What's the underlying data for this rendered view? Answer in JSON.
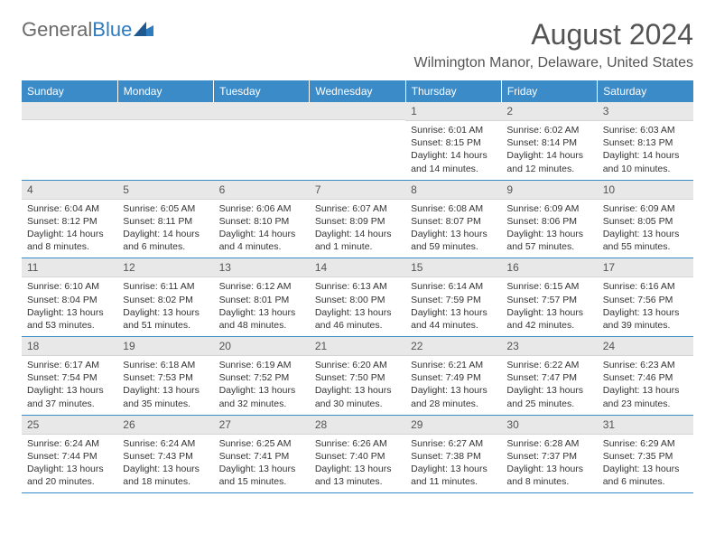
{
  "logo": {
    "general": "General",
    "blue": "Blue"
  },
  "title": "August 2024",
  "location": "Wilmington Manor, Delaware, United States",
  "colors": {
    "header_bg": "#3b8bc9",
    "header_text": "#ffffff",
    "daynum_bg": "#e8e8e8",
    "text": "#333333",
    "logo_blue": "#2f7bbf",
    "logo_gray": "#6b6b6b"
  },
  "dayNames": [
    "Sunday",
    "Monday",
    "Tuesday",
    "Wednesday",
    "Thursday",
    "Friday",
    "Saturday"
  ],
  "weeks": [
    [
      {
        "num": "",
        "sunrise": "",
        "sunset": "",
        "daylight": ""
      },
      {
        "num": "",
        "sunrise": "",
        "sunset": "",
        "daylight": ""
      },
      {
        "num": "",
        "sunrise": "",
        "sunset": "",
        "daylight": ""
      },
      {
        "num": "",
        "sunrise": "",
        "sunset": "",
        "daylight": ""
      },
      {
        "num": "1",
        "sunrise": "Sunrise: 6:01 AM",
        "sunset": "Sunset: 8:15 PM",
        "daylight": "Daylight: 14 hours and 14 minutes."
      },
      {
        "num": "2",
        "sunrise": "Sunrise: 6:02 AM",
        "sunset": "Sunset: 8:14 PM",
        "daylight": "Daylight: 14 hours and 12 minutes."
      },
      {
        "num": "3",
        "sunrise": "Sunrise: 6:03 AM",
        "sunset": "Sunset: 8:13 PM",
        "daylight": "Daylight: 14 hours and 10 minutes."
      }
    ],
    [
      {
        "num": "4",
        "sunrise": "Sunrise: 6:04 AM",
        "sunset": "Sunset: 8:12 PM",
        "daylight": "Daylight: 14 hours and 8 minutes."
      },
      {
        "num": "5",
        "sunrise": "Sunrise: 6:05 AM",
        "sunset": "Sunset: 8:11 PM",
        "daylight": "Daylight: 14 hours and 6 minutes."
      },
      {
        "num": "6",
        "sunrise": "Sunrise: 6:06 AM",
        "sunset": "Sunset: 8:10 PM",
        "daylight": "Daylight: 14 hours and 4 minutes."
      },
      {
        "num": "7",
        "sunrise": "Sunrise: 6:07 AM",
        "sunset": "Sunset: 8:09 PM",
        "daylight": "Daylight: 14 hours and 1 minute."
      },
      {
        "num": "8",
        "sunrise": "Sunrise: 6:08 AM",
        "sunset": "Sunset: 8:07 PM",
        "daylight": "Daylight: 13 hours and 59 minutes."
      },
      {
        "num": "9",
        "sunrise": "Sunrise: 6:09 AM",
        "sunset": "Sunset: 8:06 PM",
        "daylight": "Daylight: 13 hours and 57 minutes."
      },
      {
        "num": "10",
        "sunrise": "Sunrise: 6:09 AM",
        "sunset": "Sunset: 8:05 PM",
        "daylight": "Daylight: 13 hours and 55 minutes."
      }
    ],
    [
      {
        "num": "11",
        "sunrise": "Sunrise: 6:10 AM",
        "sunset": "Sunset: 8:04 PM",
        "daylight": "Daylight: 13 hours and 53 minutes."
      },
      {
        "num": "12",
        "sunrise": "Sunrise: 6:11 AM",
        "sunset": "Sunset: 8:02 PM",
        "daylight": "Daylight: 13 hours and 51 minutes."
      },
      {
        "num": "13",
        "sunrise": "Sunrise: 6:12 AM",
        "sunset": "Sunset: 8:01 PM",
        "daylight": "Daylight: 13 hours and 48 minutes."
      },
      {
        "num": "14",
        "sunrise": "Sunrise: 6:13 AM",
        "sunset": "Sunset: 8:00 PM",
        "daylight": "Daylight: 13 hours and 46 minutes."
      },
      {
        "num": "15",
        "sunrise": "Sunrise: 6:14 AM",
        "sunset": "Sunset: 7:59 PM",
        "daylight": "Daylight: 13 hours and 44 minutes."
      },
      {
        "num": "16",
        "sunrise": "Sunrise: 6:15 AM",
        "sunset": "Sunset: 7:57 PM",
        "daylight": "Daylight: 13 hours and 42 minutes."
      },
      {
        "num": "17",
        "sunrise": "Sunrise: 6:16 AM",
        "sunset": "Sunset: 7:56 PM",
        "daylight": "Daylight: 13 hours and 39 minutes."
      }
    ],
    [
      {
        "num": "18",
        "sunrise": "Sunrise: 6:17 AM",
        "sunset": "Sunset: 7:54 PM",
        "daylight": "Daylight: 13 hours and 37 minutes."
      },
      {
        "num": "19",
        "sunrise": "Sunrise: 6:18 AM",
        "sunset": "Sunset: 7:53 PM",
        "daylight": "Daylight: 13 hours and 35 minutes."
      },
      {
        "num": "20",
        "sunrise": "Sunrise: 6:19 AM",
        "sunset": "Sunset: 7:52 PM",
        "daylight": "Daylight: 13 hours and 32 minutes."
      },
      {
        "num": "21",
        "sunrise": "Sunrise: 6:20 AM",
        "sunset": "Sunset: 7:50 PM",
        "daylight": "Daylight: 13 hours and 30 minutes."
      },
      {
        "num": "22",
        "sunrise": "Sunrise: 6:21 AM",
        "sunset": "Sunset: 7:49 PM",
        "daylight": "Daylight: 13 hours and 28 minutes."
      },
      {
        "num": "23",
        "sunrise": "Sunrise: 6:22 AM",
        "sunset": "Sunset: 7:47 PM",
        "daylight": "Daylight: 13 hours and 25 minutes."
      },
      {
        "num": "24",
        "sunrise": "Sunrise: 6:23 AM",
        "sunset": "Sunset: 7:46 PM",
        "daylight": "Daylight: 13 hours and 23 minutes."
      }
    ],
    [
      {
        "num": "25",
        "sunrise": "Sunrise: 6:24 AM",
        "sunset": "Sunset: 7:44 PM",
        "daylight": "Daylight: 13 hours and 20 minutes."
      },
      {
        "num": "26",
        "sunrise": "Sunrise: 6:24 AM",
        "sunset": "Sunset: 7:43 PM",
        "daylight": "Daylight: 13 hours and 18 minutes."
      },
      {
        "num": "27",
        "sunrise": "Sunrise: 6:25 AM",
        "sunset": "Sunset: 7:41 PM",
        "daylight": "Daylight: 13 hours and 15 minutes."
      },
      {
        "num": "28",
        "sunrise": "Sunrise: 6:26 AM",
        "sunset": "Sunset: 7:40 PM",
        "daylight": "Daylight: 13 hours and 13 minutes."
      },
      {
        "num": "29",
        "sunrise": "Sunrise: 6:27 AM",
        "sunset": "Sunset: 7:38 PM",
        "daylight": "Daylight: 13 hours and 11 minutes."
      },
      {
        "num": "30",
        "sunrise": "Sunrise: 6:28 AM",
        "sunset": "Sunset: 7:37 PM",
        "daylight": "Daylight: 13 hours and 8 minutes."
      },
      {
        "num": "31",
        "sunrise": "Sunrise: 6:29 AM",
        "sunset": "Sunset: 7:35 PM",
        "daylight": "Daylight: 13 hours and 6 minutes."
      }
    ]
  ]
}
